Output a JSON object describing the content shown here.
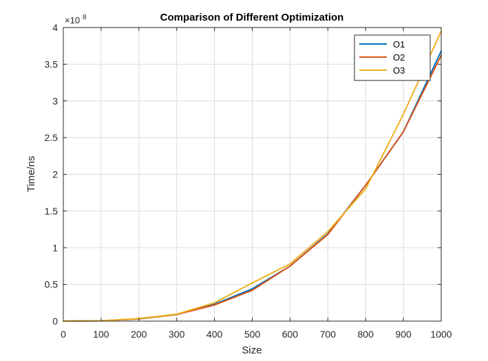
{
  "chart_data": {
    "type": "line",
    "title": "Comparison of Different Optimization",
    "xlabel": "Size",
    "ylabel": "Time/ns",
    "exponent_label": "×10",
    "exponent_power": "8",
    "xlim": [
      0,
      1000
    ],
    "ylim": [
      0,
      4
    ],
    "x_ticks": [
      "0",
      "100",
      "200",
      "300",
      "400",
      "500",
      "600",
      "700",
      "800",
      "900",
      "1000"
    ],
    "y_ticks": [
      "0",
      "0.5",
      "1",
      "1.5",
      "2",
      "2.5",
      "3",
      "3.5",
      "4"
    ],
    "grid": true,
    "legend_position": "top-right",
    "x": [
      0,
      100,
      200,
      300,
      400,
      500,
      600,
      700,
      800,
      900,
      1000
    ],
    "series": [
      {
        "name": "O1",
        "color": "#0072BD",
        "values": [
          0,
          0.005,
          0.03,
          0.09,
          0.23,
          0.44,
          0.75,
          1.19,
          1.85,
          2.58,
          3.68
        ]
      },
      {
        "name": "O2",
        "color": "#D95319",
        "values": [
          0,
          0.005,
          0.03,
          0.09,
          0.22,
          0.42,
          0.75,
          1.18,
          1.85,
          2.58,
          3.62
        ]
      },
      {
        "name": "O3",
        "color": "#EDB120",
        "values": [
          0,
          0.005,
          0.035,
          0.095,
          0.25,
          0.52,
          0.78,
          1.22,
          1.8,
          2.82,
          3.95
        ]
      }
    ]
  }
}
